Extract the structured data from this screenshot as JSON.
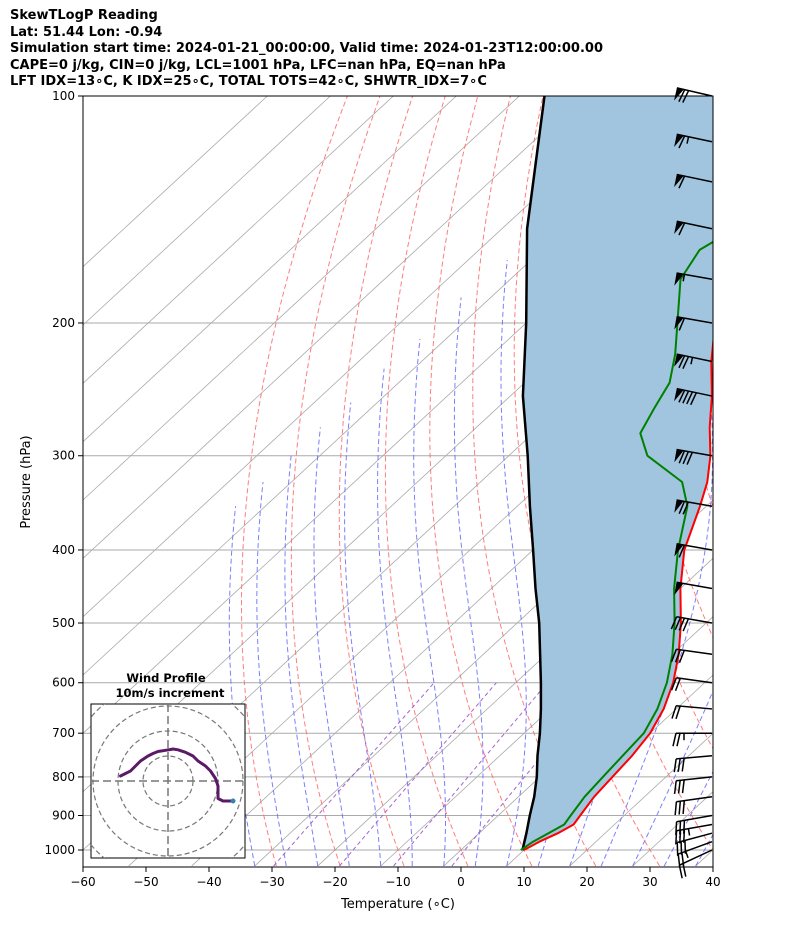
{
  "header": {
    "line1": "SkewTLogP Reading",
    "line2": "Lat: 51.44   Lon: -0.94",
    "line3": "Simulation start time: 2024-01-21_00:00:00, Valid time: 2024-01-23T12:00:00.00",
    "line4": "CAPE=0 j/kg, CIN=0 j/kg, LCL=1001 hPa, LFC=nan hPa, EQ=nan hPa",
    "line5": "LFT IDX=13∘C, K IDX=25∘C, TOTAL TOTS=42∘C, SHWTR_IDX=7∘C"
  },
  "colors": {
    "temperature": "#ff0000",
    "dewpoint": "#008000",
    "parcel": "#000000",
    "cape_fill": "#a1c5df",
    "dry_adiabat": "#ff6666",
    "moist_adiabat": "#6666ff",
    "mixing_ratio": "#9955cc",
    "isotherm": "#aaaaaa",
    "hodograph": "#5a1a66"
  },
  "chart_data": {
    "type": "skewt",
    "xlabel": "Temperature (∘C)",
    "ylabel": "Pressure (hPa)",
    "xlim": [
      -60,
      40
    ],
    "ylim": [
      1050,
      100
    ],
    "x_ticks": [
      -60,
      -50,
      -40,
      -30,
      -20,
      -10,
      0,
      10,
      20,
      30,
      40
    ],
    "x_tick_labels": [
      "−60",
      "−50",
      "−40",
      "−30",
      "−20",
      "−10",
      "0",
      "10",
      "20",
      "30",
      "40"
    ],
    "y_ticks": [
      1000,
      900,
      800,
      700,
      600,
      500,
      400,
      300,
      200,
      100
    ],
    "y_tick_labels": [
      "1000",
      "900",
      "800",
      "700",
      "600",
      "500",
      "400",
      "300",
      "200",
      "100"
    ],
    "temperature": {
      "pressure": [
        1000,
        975,
        950,
        925,
        900,
        850,
        800,
        750,
        700,
        650,
        600,
        550,
        500,
        450,
        400,
        350,
        325,
        300,
        275,
        250,
        225,
        200,
        175,
        160,
        150,
        140,
        130,
        120,
        110,
        100
      ],
      "values": [
        10,
        11,
        12.5,
        13.5,
        13,
        12,
        11.5,
        11,
        10,
        8,
        5,
        1,
        -4,
        -10,
        -16,
        -21,
        -24,
        -28,
        -33,
        -38,
        -44,
        -50,
        -56,
        -58,
        -57,
        -53,
        -47,
        -40,
        -34,
        -28
      ]
    },
    "dewpoint": {
      "pressure": [
        1000,
        975,
        950,
        925,
        900,
        850,
        800,
        750,
        700,
        650,
        600,
        550,
        500,
        450,
        400,
        350,
        325,
        300,
        280,
        260,
        240,
        220,
        200,
        175,
        160,
        150,
        140,
        130,
        120,
        110,
        100
      ],
      "values": [
        9.5,
        10,
        11,
        12,
        11.5,
        10.5,
        10,
        9.5,
        9,
        7,
        4,
        0,
        -5,
        -11,
        -17,
        -23,
        -28,
        -38,
        -43,
        -45,
        -47,
        -51,
        -56,
        -63,
        -65,
        -63,
        -60,
        -57,
        -53,
        -48,
        -43
      ]
    },
    "parcel": {
      "pressure": [
        1001,
        950,
        900,
        850,
        800,
        750,
        700,
        650,
        600,
        550,
        500,
        450,
        400,
        350,
        300,
        250,
        200,
        150,
        100
      ],
      "values": [
        9.8,
        7.5,
        5,
        2.5,
        -0.5,
        -4,
        -7.5,
        -11.5,
        -16,
        -21,
        -26.5,
        -33,
        -40,
        -48,
        -57,
        -68,
        -80,
        -96,
        -116
      ]
    },
    "wind_barbs": {
      "pressure": [
        1000,
        975,
        950,
        925,
        900,
        850,
        800,
        750,
        700,
        650,
        600,
        550,
        500,
        450,
        400,
        350,
        300,
        250,
        225,
        200,
        175,
        150,
        130,
        115,
        100
      ],
      "speed_kt": [
        20,
        25,
        30,
        35,
        30,
        30,
        30,
        30,
        25,
        20,
        20,
        30,
        40,
        50,
        60,
        70,
        80,
        90,
        75,
        60,
        55,
        60,
        60,
        65,
        70
      ],
      "direction_deg": [
        245,
        250,
        255,
        260,
        260,
        262,
        264,
        265,
        270,
        275,
        278,
        278,
        280,
        280,
        280,
        280,
        280,
        282,
        282,
        280,
        280,
        282,
        282,
        282,
        283
      ]
    },
    "hodograph": {
      "title": "Wind Profile",
      "subtitle": "10m/s increment",
      "ring_step_ms": 10,
      "u": [
        26,
        24,
        22,
        20,
        20,
        20,
        19,
        17,
        15,
        12,
        10,
        7,
        4,
        2,
        1,
        -1,
        -4,
        -6,
        -8,
        -11,
        -13,
        -15,
        -17,
        -19
      ],
      "v": [
        -8,
        -8,
        -8,
        -7,
        -5,
        -2,
        1,
        4,
        6,
        8,
        10,
        11.5,
        12.5,
        12.8,
        12.6,
        12.3,
        11.8,
        11,
        10,
        8,
        6,
        4,
        3,
        2
      ]
    }
  }
}
